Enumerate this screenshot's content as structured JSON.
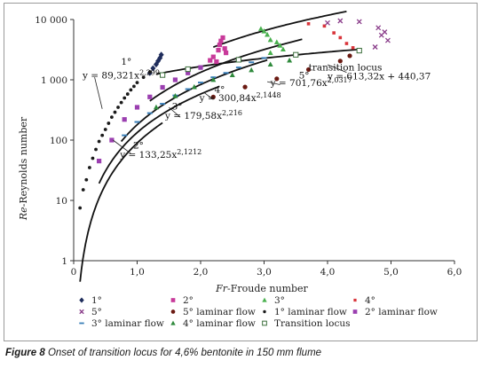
{
  "caption": {
    "prefix": "Figure 8",
    "text": "Onset of transition locus for 4,6% bentonite in 150 mm flume"
  },
  "chart_data": {
    "type": "scatter",
    "xlabel_italic": "Fr",
    "xlabel_rest": "-Froude number",
    "ylabel_italic": "Re",
    "ylabel_rest": "-Reynolds number",
    "xlim": [
      0,
      6
    ],
    "ylim": [
      1,
      10000
    ],
    "yscale": "log",
    "x_ticks": [
      {
        "v": 0,
        "label": "0"
      },
      {
        "v": 1,
        "label": "1,0"
      },
      {
        "v": 2,
        "label": "2,0"
      },
      {
        "v": 3,
        "label": "3,0"
      },
      {
        "v": 4,
        "label": "4,0"
      },
      {
        "v": 5,
        "label": "5,0"
      },
      {
        "v": 6,
        "label": "6,0"
      }
    ],
    "y_ticks": [
      {
        "v": 1,
        "label": "1"
      },
      {
        "v": 10,
        "label": "10"
      },
      {
        "v": 100,
        "label": "100"
      },
      {
        "v": 1000,
        "label": "1 000"
      },
      {
        "v": 10000,
        "label": "10 000"
      }
    ],
    "grid": false,
    "legend_position": "bottom",
    "equations": [
      {
        "name": "eq-1deg",
        "slope": "1°",
        "eq": "y = 89,321x",
        "exp": "2,299",
        "a": 89.321,
        "b": 2.299,
        "from": 0.1,
        "to": 1.4,
        "slope_at": [
          0.83,
          1780
        ],
        "eq_at": [
          0.14,
          1060
        ]
      },
      {
        "name": "eq-2deg",
        "slope": "2°",
        "eq": "y = 133,25x",
        "exp": "2,1212",
        "a": 133.25,
        "b": 2.1212,
        "from": 0.4,
        "to": 2.3,
        "slope_at": [
          1.02,
          72
        ],
        "eq_at": [
          0.73,
          51
        ]
      },
      {
        "name": "eq-3deg",
        "slope": "3°",
        "eq": "y = 179,58x",
        "exp": "2,216",
        "a": 179.58,
        "b": 2.216,
        "from": 0.75,
        "to": 3.05,
        "slope_at": [
          1.63,
          322
        ],
        "eq_at": [
          1.44,
          225
        ]
      },
      {
        "name": "eq-4deg",
        "slope": "4°",
        "eq": "y = 300,84x",
        "exp": "2,1448",
        "a": 300.84,
        "b": 2.1448,
        "from": 1.2,
        "to": 3.6,
        "slope_at": [
          2.3,
          610
        ],
        "eq_at": [
          1.98,
          443
        ]
      },
      {
        "name": "eq-5deg",
        "slope": "5°",
        "eq": "y = 701,76x",
        "exp": "2,0317",
        "a": 701.76,
        "b": 2.0317,
        "from": 2.2,
        "to": 4.3,
        "slope_at": [
          3.63,
          1045
        ],
        "eq_at": [
          3.1,
          790
        ]
      },
      {
        "name": "eq-transition",
        "slope": "transition locus",
        "eq": "y = 613,32x + 440,37",
        "exp": "",
        "a": 613.32,
        "b": 440.37,
        "linear": true,
        "from": 1.3,
        "to": 4.5,
        "slope_at": [
          4.28,
          1420
        ],
        "eq_at": [
          4.0,
          1020
        ]
      }
    ],
    "series": [
      {
        "key": "s1",
        "name": "1°",
        "marker": "diamond",
        "color": "#1f2d5c",
        "x": [
          1.2,
          1.25,
          1.3,
          1.33,
          1.36,
          1.38
        ],
        "y": [
          1300,
          1550,
          1800,
          2050,
          2300,
          2600
        ]
      },
      {
        "key": "s2",
        "name": "2°",
        "marker": "square",
        "color": "#c83a9a",
        "x": [
          2.15,
          2.2,
          2.25,
          2.28,
          2.3,
          2.32,
          2.35,
          2.38,
          2.4
        ],
        "y": [
          2100,
          2400,
          2000,
          3100,
          3800,
          4400,
          5000,
          3300,
          2800
        ]
      },
      {
        "key": "s3",
        "name": "3°",
        "marker": "triangle",
        "color": "#49b04e",
        "x": [
          2.95,
          3.0,
          3.05,
          3.1,
          3.2,
          3.25,
          3.3,
          3.1
        ],
        "y": [
          7000,
          6400,
          5600,
          4600,
          4200,
          3700,
          3200,
          2800
        ]
      },
      {
        "key": "s4",
        "name": "4°",
        "marker": "smallsquare",
        "color": "#d9343a",
        "x": [
          3.95,
          4.1,
          4.2,
          4.3,
          4.4,
          3.7
        ],
        "y": [
          7800,
          6000,
          5000,
          4000,
          3400,
          8500
        ]
      },
      {
        "key": "s5",
        "name": "5°",
        "marker": "x",
        "color": "#8a3d8a",
        "x": [
          4.2,
          4.5,
          4.8,
          4.85,
          4.9,
          4.95,
          4.75,
          4.0
        ],
        "y": [
          9500,
          9200,
          7300,
          5500,
          6200,
          4500,
          3500,
          8800
        ]
      },
      {
        "key": "l5",
        "name": "5° laminar flow",
        "marker": "circle",
        "color": "#6b1a12",
        "x": [
          2.2,
          2.7,
          3.2,
          3.7,
          4.2,
          4.35
        ],
        "y": [
          520,
          760,
          1040,
          1480,
          2050,
          2500
        ]
      },
      {
        "key": "l1",
        "name": "1° laminar flow",
        "marker": "dot",
        "color": "#1a1a1a",
        "x": [
          0.1,
          0.15,
          0.2,
          0.25,
          0.3,
          0.35,
          0.4,
          0.45,
          0.5,
          0.55,
          0.6,
          0.65,
          0.7,
          0.75,
          0.8,
          0.85,
          0.9,
          0.95,
          1.0,
          1.1,
          1.2
        ],
        "y": [
          7.5,
          15,
          22,
          35,
          50,
          70,
          95,
          120,
          150,
          190,
          240,
          290,
          350,
          420,
          500,
          580,
          680,
          780,
          900,
          1100,
          1350
        ]
      },
      {
        "key": "l2",
        "name": "2° laminar flow",
        "marker": "square",
        "color": "#9b3fb0",
        "x": [
          0.4,
          0.6,
          0.8,
          1.0,
          1.2,
          1.4,
          1.6,
          1.8,
          2.0
        ],
        "y": [
          45,
          100,
          220,
          350,
          520,
          750,
          1000,
          1300,
          1600
        ]
      },
      {
        "key": "l3",
        "name": "3° laminar flow",
        "marker": "dash",
        "color": "#3a7fb8",
        "x": [
          0.8,
          1.0,
          1.2,
          1.4,
          1.6,
          1.8,
          2.0,
          2.2,
          2.4,
          2.6,
          2.8,
          3.0
        ],
        "y": [
          120,
          200,
          280,
          400,
          550,
          700,
          900,
          1100,
          1300,
          1600,
          1950,
          2300
        ]
      },
      {
        "key": "l4",
        "name": "4° laminar flow",
        "marker": "triangle",
        "color": "#2f8a3c",
        "x": [
          1.3,
          1.6,
          1.9,
          2.2,
          2.5,
          2.8,
          3.1,
          3.4
        ],
        "y": [
          350,
          540,
          760,
          1000,
          1200,
          1450,
          1800,
          2100
        ]
      },
      {
        "key": "tl",
        "name": "Transition locus",
        "marker": "opensquare",
        "color": "#3c6e3c",
        "x": [
          1.4,
          1.8,
          2.6,
          3.5,
          4.5
        ],
        "y": [
          1200,
          1500,
          2150,
          2600,
          3050
        ]
      }
    ],
    "legend": [
      {
        "key": "s1",
        "label": "1°"
      },
      {
        "key": "s2",
        "label": "2°"
      },
      {
        "key": "s3",
        "label": "3°"
      },
      {
        "key": "s4",
        "label": "4°"
      },
      {
        "key": "s5",
        "label": "5°"
      },
      {
        "key": "l5",
        "label": "5° laminar flow"
      },
      {
        "key": "l1",
        "label": "1° laminar flow"
      },
      {
        "key": "l2",
        "label": "2° laminar flow"
      },
      {
        "key": "l3",
        "label": "3° laminar flow"
      },
      {
        "key": "l4",
        "label": "4° laminar flow"
      },
      {
        "key": "tl",
        "label": "Transition locus"
      }
    ]
  }
}
